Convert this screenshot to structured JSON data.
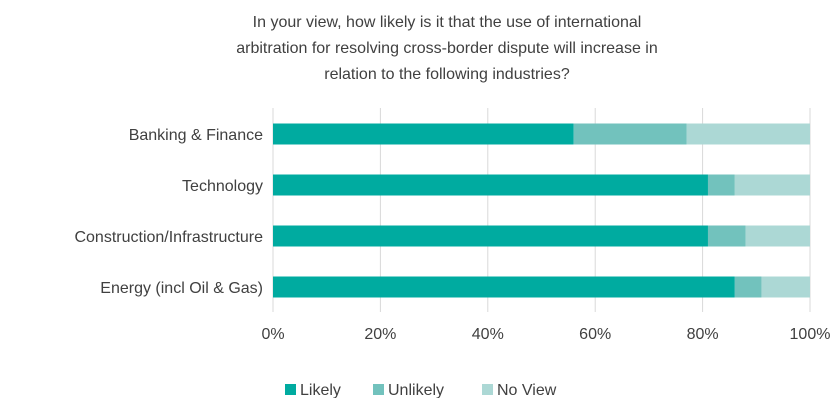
{
  "chart_data": {
    "type": "bar",
    "orientation": "horizontal",
    "stacked": true,
    "title_lines": [
      "In your view, how likely is it that the use of international",
      "arbitration for resolving cross-border dispute will increase in",
      "relation to the following industries?"
    ],
    "categories": [
      "Banking & Finance",
      "Technology",
      "Construction/Infrastructure",
      "Energy (incl Oil & Gas)"
    ],
    "series": [
      {
        "name": "Likely",
        "color": "#00aba0",
        "values": [
          56,
          81,
          81,
          86
        ]
      },
      {
        "name": "Unlikely",
        "color": "#72c2bd",
        "values": [
          21,
          5,
          7,
          5
        ]
      },
      {
        "name": "No View",
        "color": "#acd8d5",
        "values": [
          23,
          14,
          12,
          9
        ]
      }
    ],
    "x_ticks": [
      "0%",
      "20%",
      "40%",
      "60%",
      "80%",
      "100%"
    ],
    "xlim": [
      0,
      100
    ],
    "grid": "vertical",
    "legend_position": "bottom"
  }
}
